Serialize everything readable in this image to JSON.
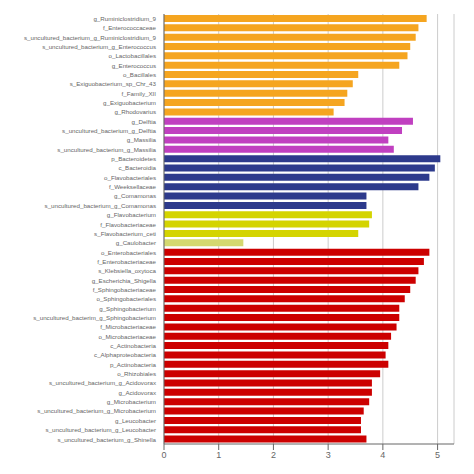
{
  "chart_data": {
    "type": "bar",
    "orientation": "horizontal",
    "categories": [
      "g_Ruminiclostridium_9",
      "f_Enterococcaceae",
      "s_uncultured_bacterium_g_Ruminiclostridium_9",
      "s_uncultured_bacterium_g_Enterococcus",
      "o_Lactobacillales",
      "g_Enterococcus",
      "o_Bacillales",
      "s_Exiguobacterium_sp_Chr_43",
      "f_Family_XII",
      "g_Exiguobacterium",
      "g_Rhodovarius",
      "g_Delftia",
      "s_uncultured_bacterium_g_Delftia",
      "g_Massilia",
      "s_uncultured_bacterium_g_Massilia",
      "p_Bacteroidetes",
      "c_Bacteroidia",
      "o_Flavobacteriales",
      "f_Weeksellaceae",
      "g_Comamonas",
      "s_uncultured_bacterium_g_Comamonas",
      "g_Flavobacterium",
      "f_Flavobacteriaceae",
      "s_Flavobacterium_ceti",
      "g_Caulobacter",
      "o_Enterobacteriales",
      "f_Enterobacteriaceae",
      "s_Klebsiella_oxytoca",
      "g_Escherichia_Shigella",
      "f_Sphingobacteriaceae",
      "o_Sphingobacteriales",
      "g_Sphingobacterium",
      "s_uncultured_bacterim_g_Sphingobacterium",
      "f_Microbacteriaceae",
      "o_Microbacteriaceae",
      "c_Actinobacteria",
      "c_Alphaproteobacteria",
      "p_Actinobacteria",
      "o_Rhizobiales",
      "s_uncultured_bacterium_g_Acidovorax",
      "g_Acidovorax",
      "g_Microbacterium",
      "s_uncultured_bacterium_g_Microbacterium",
      "g_Leucobacter",
      "s_uncultured_bacterium_g_Leucobacter",
      "s_uncultured_bacterium_g_Shinella"
    ],
    "values": [
      4.8,
      4.65,
      4.6,
      4.5,
      4.45,
      4.3,
      3.55,
      3.45,
      3.35,
      3.3,
      3.1,
      4.55,
      4.35,
      4.1,
      4.2,
      5.05,
      4.95,
      4.85,
      4.65,
      3.7,
      3.7,
      3.8,
      3.75,
      3.55,
      1.45,
      4.85,
      4.75,
      4.65,
      4.6,
      4.5,
      4.4,
      4.3,
      4.3,
      4.25,
      4.15,
      4.1,
      4.05,
      4.1,
      3.95,
      3.8,
      3.8,
      3.75,
      3.65,
      3.6,
      3.6,
      3.7
    ],
    "colors": [
      "#F5A520",
      "#F5A520",
      "#F5A520",
      "#F5A520",
      "#F5A520",
      "#F5A520",
      "#F5A520",
      "#F5A520",
      "#F5A520",
      "#F5A520",
      "#F5A520",
      "#C040C0",
      "#C040C0",
      "#C040C0",
      "#C040C0",
      "#2D3A8C",
      "#2D3A8C",
      "#2D3A8C",
      "#2D3A8C",
      "#2D3A8C",
      "#2D3A8C",
      "#D4D400",
      "#D4D400",
      "#D4D400",
      "#D4D870",
      "#CC0000",
      "#CC0000",
      "#CC0000",
      "#CC0000",
      "#CC0000",
      "#CC0000",
      "#CC0000",
      "#CC0000",
      "#CC0000",
      "#CC0000",
      "#CC0000",
      "#CC0000",
      "#CC0000",
      "#CC0000",
      "#CC0000",
      "#CC0000",
      "#CC0000",
      "#CC0000",
      "#CC0000",
      "#CC0000",
      "#CC0000"
    ],
    "xlim": [
      0,
      5.3
    ],
    "xticks": [
      0,
      1,
      2,
      3,
      4,
      5
    ],
    "grid": true
  }
}
